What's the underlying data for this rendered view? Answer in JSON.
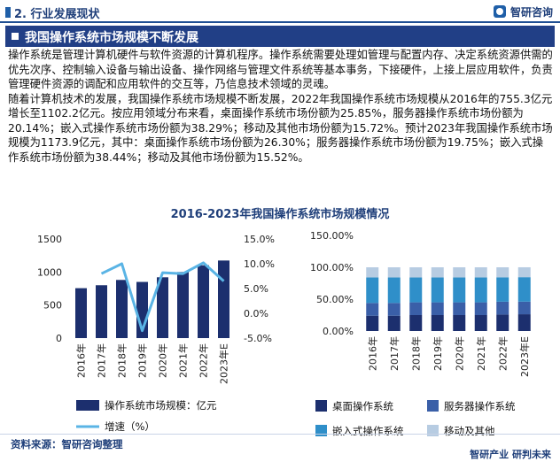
{
  "header": {
    "section": "2. 行业发展现状",
    "logo_text": "智研咨询"
  },
  "banner": {
    "title": "我国操作系统市场规模不断发展"
  },
  "paragraphs": [
    "操作系统是管理计算机硬件与软件资源的计算机程序。操作系统需要处理如管理与配置内存、决定系统资源供需的优先次序、控制输入设备与输出设备、操作网络与管理文件系统等基本事务，下接硬件，上接上层应用软件，负责管理硬件资源的调配和应用软件的交互等，乃信息技术领域的灵魂。",
    "随着计算机技术的发展，我国操作系统市场规模不断发展，2022年我国操作系统市场规模从2016年的755.3亿元增长至1102.2亿元。按应用领域分布来看，桌面操作系统市场份额为25.85%，服务器操作系统市场份额为20.14%；嵌入式操作系统市场份额为38.29%；移动及其他市场份额为15.72%。预计2023年我国操作系统市场规模为1173.9亿元，其中：桌面操作系统市场份额为26.30%；服务器操作系统市场份额为19.75%；嵌入式操作系统市场份额为38.44%；移动及其他市场份额为15.52%。"
  ],
  "chart_title": "2016-2023年我国操作系统市场规模情况",
  "chart_data": [
    {
      "type": "bar",
      "categories": [
        "2016年",
        "2017年",
        "2018年",
        "2019年",
        "2020年",
        "2021年",
        "2022年",
        "2023年E"
      ],
      "series": [
        {
          "name": "操作系统市场规模：亿元",
          "type": "bar",
          "axis": "left",
          "color": "#1c2f6e",
          "values": [
            755.3,
            800,
            880,
            850,
            920,
            1000,
            1102.2,
            1173.9
          ]
        },
        {
          "name": "增速（%）",
          "type": "line",
          "axis": "right",
          "color": "#5ab4e5",
          "values": [
            null,
            8.0,
            10.0,
            -3.5,
            8.2,
            8.0,
            10.2,
            6.5
          ]
        }
      ],
      "yticks_left": [
        "0",
        "500",
        "1000",
        "1500"
      ],
      "ylim_left": [
        0,
        1500
      ],
      "yticks_right": [
        "-5.0%",
        "0.0%",
        "5.0%",
        "10.0%",
        "15.0%"
      ],
      "ylim_right": [
        -5,
        15
      ],
      "legend": "bottom"
    },
    {
      "type": "bar",
      "stacked": true,
      "categories": [
        "2016年",
        "2017年",
        "2018年",
        "2019年",
        "2020年",
        "2021年",
        "2022年",
        "2023年E"
      ],
      "series": [
        {
          "name": "桌面操作系统",
          "color": "#1c2f6e",
          "values": [
            24,
            24,
            25,
            25,
            25,
            25,
            25.85,
            26.3
          ]
        },
        {
          "name": "服务器操作系统",
          "color": "#3a5fa8",
          "values": [
            20,
            20,
            20,
            20,
            20,
            20,
            20.14,
            19.75
          ]
        },
        {
          "name": "嵌入式操作系统",
          "color": "#2f8fc9",
          "values": [
            40,
            40,
            39,
            39,
            39,
            39,
            38.29,
            38.44
          ]
        },
        {
          "name": "移动及其他",
          "color": "#b7cce2",
          "values": [
            16,
            16,
            16,
            16,
            16,
            16,
            15.72,
            15.52
          ]
        }
      ],
      "yticks": [
        "0.00%",
        "50.00%",
        "100.00%",
        "150.00%"
      ],
      "ylim": [
        0,
        150
      ],
      "legend": "bottom"
    }
  ],
  "source": "资料来源：智研咨询整理",
  "footer_brand": "智研产业  研判未来"
}
